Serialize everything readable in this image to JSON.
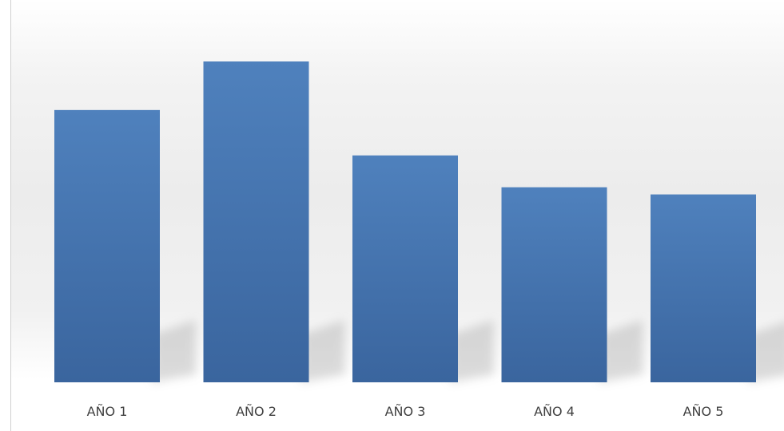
{
  "chart_data": {
    "type": "bar",
    "categories": [
      "AÑO 1",
      "AÑO 2",
      "AÑO 3",
      "AÑO 4",
      "AÑO 5"
    ],
    "values": [
      342,
      403,
      285,
      245,
      236
    ],
    "title": "",
    "xlabel": "",
    "ylabel": "",
    "ylim": [
      0,
      420
    ],
    "grid": false,
    "legend": "none"
  },
  "colors": {
    "bar_top": "#4f81bd",
    "bar_bottom": "#3a659e",
    "axis": "#d0d0d0",
    "background_gray": "#e8e8e8"
  }
}
